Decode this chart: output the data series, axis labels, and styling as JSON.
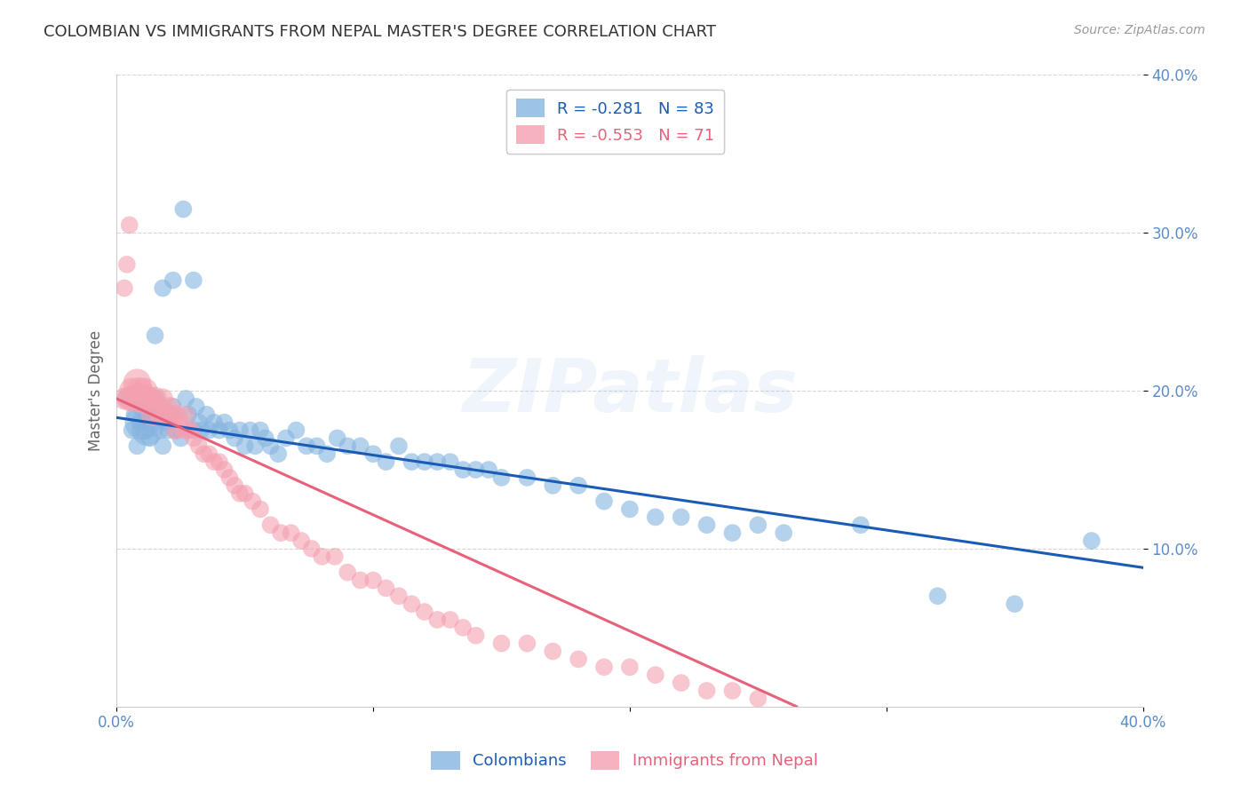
{
  "title": "COLOMBIAN VS IMMIGRANTS FROM NEPAL MASTER'S DEGREE CORRELATION CHART",
  "source": "Source: ZipAtlas.com",
  "ylabel": "Master's Degree",
  "xlim": [
    0.0,
    0.4
  ],
  "ylim": [
    0.0,
    0.4
  ],
  "watermark": "ZIPatlas",
  "legend_col1_label": "Colombians",
  "legend_col2_label": "Immigrants from Nepal",
  "r_blue": "-0.281",
  "n_blue": "83",
  "r_pink": "-0.553",
  "n_pink": "71",
  "blue_color": "#85B4E0",
  "pink_color": "#F4A0B0",
  "line_blue": "#1A5BB5",
  "line_pink": "#E8607A",
  "axis_color": "#5B8CC8",
  "grid_color": "#CCCCCC",
  "blue_line_x0": 0.0,
  "blue_line_y0": 0.183,
  "blue_line_x1": 0.4,
  "blue_line_y1": 0.088,
  "pink_line_x0": 0.0,
  "pink_line_y0": 0.195,
  "pink_line_x1": 0.265,
  "pink_line_y1": 0.0,
  "colombians_x": [
    0.004,
    0.006,
    0.007,
    0.008,
    0.009,
    0.01,
    0.011,
    0.012,
    0.013,
    0.014,
    0.015,
    0.016,
    0.017,
    0.018,
    0.019,
    0.02,
    0.021,
    0.022,
    0.023,
    0.025,
    0.027,
    0.028,
    0.03,
    0.031,
    0.032,
    0.033,
    0.035,
    0.036,
    0.038,
    0.04,
    0.042,
    0.044,
    0.046,
    0.048,
    0.05,
    0.052,
    0.054,
    0.056,
    0.058,
    0.06,
    0.063,
    0.066,
    0.07,
    0.074,
    0.078,
    0.082,
    0.086,
    0.09,
    0.095,
    0.1,
    0.105,
    0.11,
    0.115,
    0.12,
    0.125,
    0.13,
    0.135,
    0.14,
    0.145,
    0.15,
    0.16,
    0.17,
    0.18,
    0.19,
    0.2,
    0.21,
    0.22,
    0.23,
    0.24,
    0.25,
    0.26,
    0.29,
    0.32,
    0.35,
    0.38,
    0.008,
    0.01,
    0.012,
    0.015,
    0.018,
    0.022,
    0.026,
    0.03
  ],
  "colombians_y": [
    0.195,
    0.175,
    0.185,
    0.195,
    0.18,
    0.19,
    0.175,
    0.18,
    0.17,
    0.185,
    0.195,
    0.185,
    0.175,
    0.165,
    0.18,
    0.175,
    0.185,
    0.19,
    0.175,
    0.17,
    0.195,
    0.185,
    0.175,
    0.19,
    0.18,
    0.175,
    0.185,
    0.175,
    0.18,
    0.175,
    0.18,
    0.175,
    0.17,
    0.175,
    0.165,
    0.175,
    0.165,
    0.175,
    0.17,
    0.165,
    0.16,
    0.17,
    0.175,
    0.165,
    0.165,
    0.16,
    0.17,
    0.165,
    0.165,
    0.16,
    0.155,
    0.165,
    0.155,
    0.155,
    0.155,
    0.155,
    0.15,
    0.15,
    0.15,
    0.145,
    0.145,
    0.14,
    0.14,
    0.13,
    0.125,
    0.12,
    0.12,
    0.115,
    0.11,
    0.115,
    0.11,
    0.115,
    0.07,
    0.065,
    0.105,
    0.165,
    0.18,
    0.175,
    0.235,
    0.265,
    0.27,
    0.315,
    0.27
  ],
  "colombians_size": [
    30,
    25,
    25,
    30,
    25,
    35,
    30,
    25,
    25,
    30,
    30,
    25,
    25,
    25,
    25,
    25,
    25,
    25,
    25,
    25,
    25,
    25,
    25,
    25,
    25,
    25,
    25,
    25,
    25,
    25,
    25,
    25,
    25,
    25,
    25,
    25,
    25,
    25,
    25,
    25,
    25,
    25,
    25,
    25,
    25,
    25,
    25,
    25,
    25,
    25,
    25,
    25,
    25,
    25,
    25,
    25,
    25,
    25,
    25,
    25,
    25,
    25,
    25,
    25,
    25,
    25,
    25,
    25,
    25,
    25,
    25,
    25,
    25,
    25,
    25,
    25,
    100,
    80,
    25,
    25,
    25,
    25,
    25
  ],
  "nepal_x": [
    0.003,
    0.005,
    0.006,
    0.007,
    0.008,
    0.009,
    0.01,
    0.011,
    0.012,
    0.013,
    0.014,
    0.015,
    0.016,
    0.017,
    0.018,
    0.019,
    0.02,
    0.021,
    0.022,
    0.023,
    0.024,
    0.025,
    0.026,
    0.027,
    0.028,
    0.029,
    0.03,
    0.032,
    0.034,
    0.036,
    0.038,
    0.04,
    0.042,
    0.044,
    0.046,
    0.048,
    0.05,
    0.053,
    0.056,
    0.06,
    0.064,
    0.068,
    0.072,
    0.076,
    0.08,
    0.085,
    0.09,
    0.095,
    0.1,
    0.105,
    0.11,
    0.115,
    0.12,
    0.125,
    0.13,
    0.135,
    0.14,
    0.15,
    0.16,
    0.17,
    0.18,
    0.19,
    0.2,
    0.21,
    0.22,
    0.23,
    0.24,
    0.25,
    0.003,
    0.004,
    0.005
  ],
  "nepal_y": [
    0.195,
    0.195,
    0.2,
    0.195,
    0.205,
    0.2,
    0.195,
    0.2,
    0.195,
    0.195,
    0.185,
    0.195,
    0.19,
    0.185,
    0.195,
    0.185,
    0.185,
    0.19,
    0.185,
    0.175,
    0.185,
    0.18,
    0.175,
    0.185,
    0.175,
    0.175,
    0.17,
    0.165,
    0.16,
    0.16,
    0.155,
    0.155,
    0.15,
    0.145,
    0.14,
    0.135,
    0.135,
    0.13,
    0.125,
    0.115,
    0.11,
    0.11,
    0.105,
    0.1,
    0.095,
    0.095,
    0.085,
    0.08,
    0.08,
    0.075,
    0.07,
    0.065,
    0.06,
    0.055,
    0.055,
    0.05,
    0.045,
    0.04,
    0.04,
    0.035,
    0.03,
    0.025,
    0.025,
    0.02,
    0.015,
    0.01,
    0.01,
    0.005,
    0.265,
    0.28,
    0.305
  ],
  "nepal_size": [
    40,
    50,
    55,
    60,
    65,
    60,
    70,
    55,
    50,
    45,
    45,
    45,
    40,
    40,
    35,
    35,
    35,
    30,
    30,
    30,
    25,
    25,
    25,
    25,
    25,
    25,
    25,
    25,
    25,
    25,
    25,
    25,
    25,
    25,
    25,
    25,
    25,
    25,
    25,
    25,
    25,
    25,
    25,
    25,
    25,
    25,
    25,
    25,
    25,
    25,
    25,
    25,
    25,
    25,
    25,
    25,
    25,
    25,
    25,
    25,
    25,
    25,
    25,
    25,
    25,
    25,
    25,
    25,
    25,
    25,
    25
  ]
}
